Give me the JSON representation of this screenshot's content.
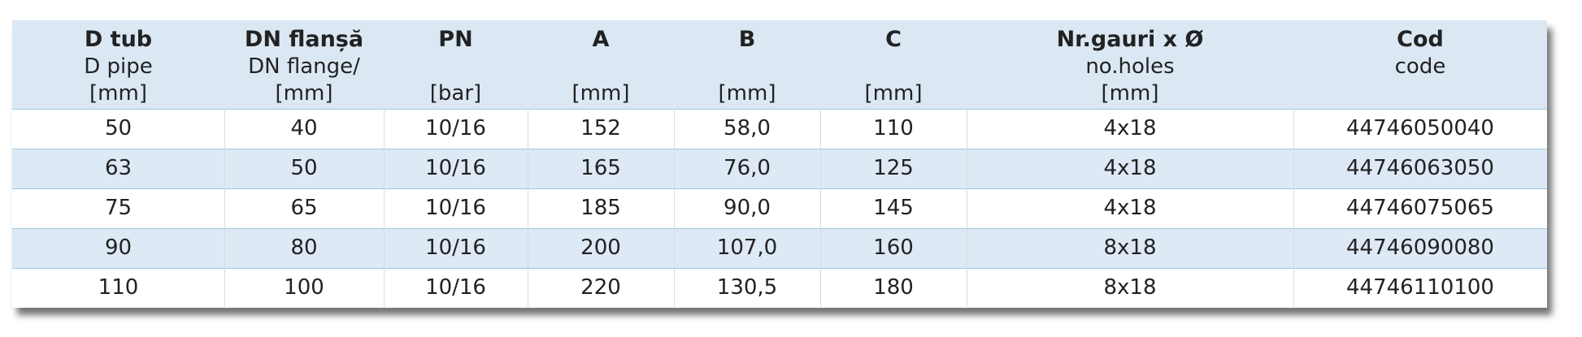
{
  "table": {
    "header": [
      {
        "title": "D tub",
        "sub": [
          "D pipe",
          "[mm]"
        ]
      },
      {
        "title": "DN flanșă",
        "sub": [
          "DN flange/",
          "[mm]"
        ]
      },
      {
        "title": "PN",
        "sub": [
          "[bar]"
        ]
      },
      {
        "title": "A",
        "sub": [
          "[mm]"
        ]
      },
      {
        "title": "B",
        "sub": [
          "[mm]"
        ]
      },
      {
        "title": "C",
        "sub": [
          "[mm]"
        ]
      },
      {
        "title": "Nr.gauri x Ø",
        "sub": [
          "no.holes",
          "[mm]"
        ]
      },
      {
        "title": "Cod",
        "sub": [
          "code"
        ]
      }
    ],
    "rows": [
      [
        "50",
        "40",
        "10/16",
        "152",
        "58,0",
        "110",
        "4x18",
        "44746050040"
      ],
      [
        "63",
        "50",
        "10/16",
        "165",
        "76,0",
        "125",
        "4x18",
        "44746063050"
      ],
      [
        "75",
        "65",
        "10/16",
        "185",
        "90,0",
        "145",
        "4x18",
        "44746075065"
      ],
      [
        "90",
        "80",
        "10/16",
        "200",
        "107,0",
        "160",
        "8x18",
        "44746090080"
      ],
      [
        "110",
        "100",
        "10/16",
        "220",
        "130,5",
        "180",
        "8x18",
        "44746110100"
      ]
    ]
  }
}
